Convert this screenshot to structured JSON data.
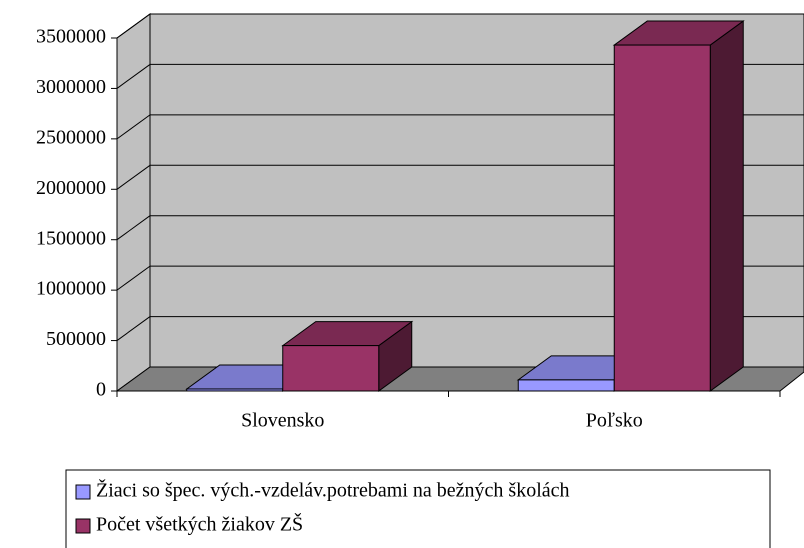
{
  "chart_data": {
    "type": "bar3d",
    "categories": [
      "Slovensko",
      "Poľsko"
    ],
    "series": [
      {
        "name": "Žiaci so špec. vých.-vzdeláv.potrebami na bežných školách",
        "color": "#9999ff",
        "values": [
          20000,
          110000
        ]
      },
      {
        "name": "Počet všetkých žiakov ZŠ",
        "color": "#993366",
        "values": [
          450000,
          3430000
        ]
      }
    ],
    "ylim": [
      0,
      3500000
    ],
    "yticks": [
      0,
      500000,
      1000000,
      1500000,
      2000000,
      2500000,
      3000000,
      3500000
    ],
    "grid": true,
    "legend": "bottom"
  }
}
